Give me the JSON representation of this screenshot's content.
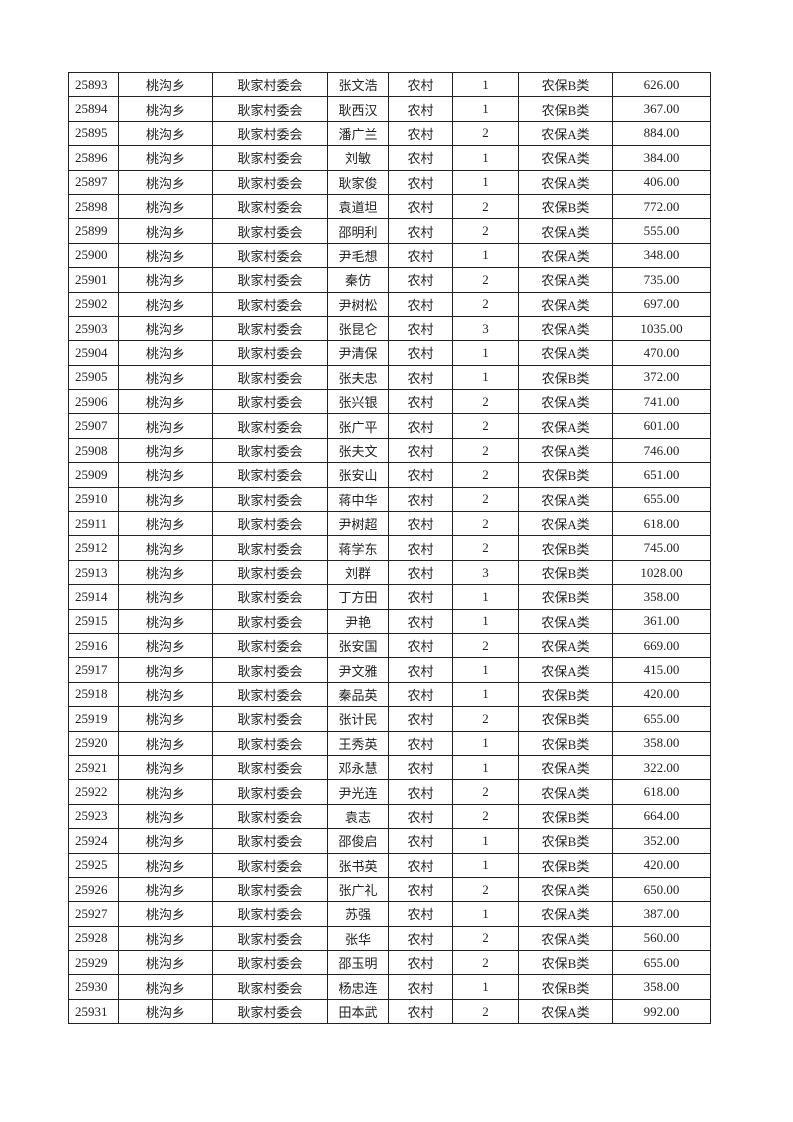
{
  "table": {
    "rows": [
      [
        "25893",
        "桃沟乡",
        "耿家村委会",
        "张文浩",
        "农村",
        "1",
        "农保B类",
        "626.00"
      ],
      [
        "25894",
        "桃沟乡",
        "耿家村委会",
        "耿西汉",
        "农村",
        "1",
        "农保B类",
        "367.00"
      ],
      [
        "25895",
        "桃沟乡",
        "耿家村委会",
        "潘广兰",
        "农村",
        "2",
        "农保A类",
        "884.00"
      ],
      [
        "25896",
        "桃沟乡",
        "耿家村委会",
        "刘敏",
        "农村",
        "1",
        "农保A类",
        "384.00"
      ],
      [
        "25897",
        "桃沟乡",
        "耿家村委会",
        "耿家俊",
        "农村",
        "1",
        "农保A类",
        "406.00"
      ],
      [
        "25898",
        "桃沟乡",
        "耿家村委会",
        "袁道坦",
        "农村",
        "2",
        "农保B类",
        "772.00"
      ],
      [
        "25899",
        "桃沟乡",
        "耿家村委会",
        "邵明利",
        "农村",
        "2",
        "农保A类",
        "555.00"
      ],
      [
        "25900",
        "桃沟乡",
        "耿家村委会",
        "尹毛想",
        "农村",
        "1",
        "农保A类",
        "348.00"
      ],
      [
        "25901",
        "桃沟乡",
        "耿家村委会",
        "秦仿",
        "农村",
        "2",
        "农保A类",
        "735.00"
      ],
      [
        "25902",
        "桃沟乡",
        "耿家村委会",
        "尹树松",
        "农村",
        "2",
        "农保A类",
        "697.00"
      ],
      [
        "25903",
        "桃沟乡",
        "耿家村委会",
        "张昆仑",
        "农村",
        "3",
        "农保A类",
        "1035.00"
      ],
      [
        "25904",
        "桃沟乡",
        "耿家村委会",
        "尹清保",
        "农村",
        "1",
        "农保A类",
        "470.00"
      ],
      [
        "25905",
        "桃沟乡",
        "耿家村委会",
        "张夫忠",
        "农村",
        "1",
        "农保B类",
        "372.00"
      ],
      [
        "25906",
        "桃沟乡",
        "耿家村委会",
        "张兴银",
        "农村",
        "2",
        "农保A类",
        "741.00"
      ],
      [
        "25907",
        "桃沟乡",
        "耿家村委会",
        "张广平",
        "农村",
        "2",
        "农保A类",
        "601.00"
      ],
      [
        "25908",
        "桃沟乡",
        "耿家村委会",
        "张夫文",
        "农村",
        "2",
        "农保A类",
        "746.00"
      ],
      [
        "25909",
        "桃沟乡",
        "耿家村委会",
        "张安山",
        "农村",
        "2",
        "农保B类",
        "651.00"
      ],
      [
        "25910",
        "桃沟乡",
        "耿家村委会",
        "蒋中华",
        "农村",
        "2",
        "农保A类",
        "655.00"
      ],
      [
        "25911",
        "桃沟乡",
        "耿家村委会",
        "尹树超",
        "农村",
        "2",
        "农保A类",
        "618.00"
      ],
      [
        "25912",
        "桃沟乡",
        "耿家村委会",
        "蒋学东",
        "农村",
        "2",
        "农保B类",
        "745.00"
      ],
      [
        "25913",
        "桃沟乡",
        "耿家村委会",
        "刘群",
        "农村",
        "3",
        "农保B类",
        "1028.00"
      ],
      [
        "25914",
        "桃沟乡",
        "耿家村委会",
        "丁方田",
        "农村",
        "1",
        "农保B类",
        "358.00"
      ],
      [
        "25915",
        "桃沟乡",
        "耿家村委会",
        "尹艳",
        "农村",
        "1",
        "农保A类",
        "361.00"
      ],
      [
        "25916",
        "桃沟乡",
        "耿家村委会",
        "张安国",
        "农村",
        "2",
        "农保A类",
        "669.00"
      ],
      [
        "25917",
        "桃沟乡",
        "耿家村委会",
        "尹文雅",
        "农村",
        "1",
        "农保A类",
        "415.00"
      ],
      [
        "25918",
        "桃沟乡",
        "耿家村委会",
        "秦品英",
        "农村",
        "1",
        "农保B类",
        "420.00"
      ],
      [
        "25919",
        "桃沟乡",
        "耿家村委会",
        "张计民",
        "农村",
        "2",
        "农保B类",
        "655.00"
      ],
      [
        "25920",
        "桃沟乡",
        "耿家村委会",
        "王秀英",
        "农村",
        "1",
        "农保B类",
        "358.00"
      ],
      [
        "25921",
        "桃沟乡",
        "耿家村委会",
        "邓永慧",
        "农村",
        "1",
        "农保A类",
        "322.00"
      ],
      [
        "25922",
        "桃沟乡",
        "耿家村委会",
        "尹光连",
        "农村",
        "2",
        "农保A类",
        "618.00"
      ],
      [
        "25923",
        "桃沟乡",
        "耿家村委会",
        "袁志",
        "农村",
        "2",
        "农保B类",
        "664.00"
      ],
      [
        "25924",
        "桃沟乡",
        "耿家村委会",
        "邵俊启",
        "农村",
        "1",
        "农保B类",
        "352.00"
      ],
      [
        "25925",
        "桃沟乡",
        "耿家村委会",
        "张书英",
        "农村",
        "1",
        "农保B类",
        "420.00"
      ],
      [
        "25926",
        "桃沟乡",
        "耿家村委会",
        "张广礼",
        "农村",
        "2",
        "农保A类",
        "650.00"
      ],
      [
        "25927",
        "桃沟乡",
        "耿家村委会",
        "苏强",
        "农村",
        "1",
        "农保A类",
        "387.00"
      ],
      [
        "25928",
        "桃沟乡",
        "耿家村委会",
        "张华",
        "农村",
        "2",
        "农保A类",
        "560.00"
      ],
      [
        "25929",
        "桃沟乡",
        "耿家村委会",
        "邵玉明",
        "农村",
        "2",
        "农保B类",
        "655.00"
      ],
      [
        "25930",
        "桃沟乡",
        "耿家村委会",
        "杨忠连",
        "农村",
        "1",
        "农保B类",
        "358.00"
      ],
      [
        "25931",
        "桃沟乡",
        "耿家村委会",
        "田本武",
        "农村",
        "2",
        "农保A类",
        "992.00"
      ]
    ]
  }
}
